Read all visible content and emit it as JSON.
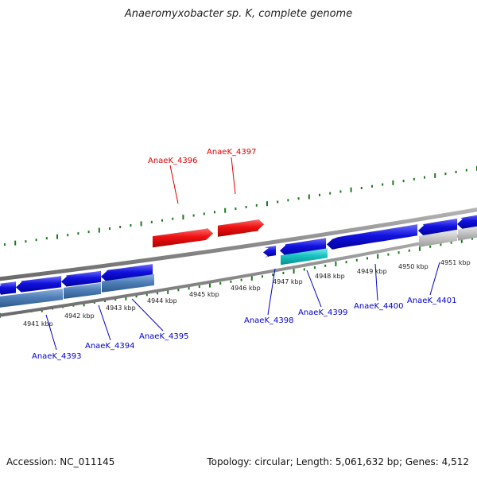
{
  "title": "Anaeromyxobacter sp. K, complete genome",
  "footer": {
    "accession": "Accession: NC_011145",
    "summary": "Topology: circular; Length: 5,061,632 bp; Genes: 4,512"
  },
  "kbp_labels": [
    "4941 kbp",
    "4942 kbp",
    "4943 kbp",
    "4944 kbp",
    "4945 kbp",
    "4946 kbp",
    "4947 kbp",
    "4948 kbp",
    "4949 kbp",
    "4950 kbp",
    "4951 kbp"
  ],
  "gene_labels": {
    "above": [
      "AnaeK_4396",
      "AnaeK_4397"
    ],
    "below": [
      "AnaeK_4393",
      "AnaeK_4394",
      "AnaeK_4395",
      "AnaeK_4398",
      "AnaeK_4399",
      "AnaeK_4400",
      "AnaeK_4401"
    ]
  },
  "colors": {
    "backbone": "#8c8c8c",
    "tick": "#1a7a1a",
    "forward_gene": "#ee1111",
    "reverse_gene": "#1111dd",
    "steel_gene": "#4f7fb8",
    "cyan_gene": "#18c4c4",
    "grey_gene": "#c8c8c8",
    "label_red": "#e00000",
    "label_blue": "#0000cc"
  }
}
